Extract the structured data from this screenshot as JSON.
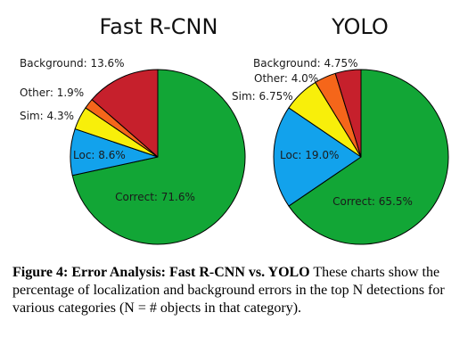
{
  "chart_data": [
    {
      "type": "pie",
      "title": "Fast R-CNN",
      "slices": [
        {
          "label": "Correct",
          "value": 71.6,
          "color": "#12a636",
          "text": "Correct: 71.6%"
        },
        {
          "label": "Loc",
          "value": 8.6,
          "color": "#12a2ec",
          "text": "Loc: 8.6%"
        },
        {
          "label": "Sim",
          "value": 4.3,
          "color": "#f8ef0a",
          "text": "Sim: 4.3%"
        },
        {
          "label": "Other",
          "value": 1.9,
          "color": "#f5661a",
          "text": "Other: 1.9%"
        },
        {
          "label": "Background",
          "value": 13.6,
          "color": "#c6202c",
          "text": "Background: 13.6%"
        }
      ]
    },
    {
      "type": "pie",
      "title": "YOLO",
      "slices": [
        {
          "label": "Correct",
          "value": 65.5,
          "color": "#12a636",
          "text": "Correct: 65.5%"
        },
        {
          "label": "Loc",
          "value": 19.0,
          "color": "#12a2ec",
          "text": "Loc: 19.0%"
        },
        {
          "label": "Sim",
          "value": 6.75,
          "color": "#f8ef0a",
          "text": "Sim: 6.75%"
        },
        {
          "label": "Other",
          "value": 4.0,
          "color": "#f5661a",
          "text": "Other: 4.0%"
        },
        {
          "label": "Background",
          "value": 4.75,
          "color": "#c6202c",
          "text": "Background: 4.75%"
        }
      ]
    }
  ],
  "caption": {
    "bold": "Figure 4: Error Analysis: Fast R-CNN vs. YOLO",
    "text": " These charts show the percentage of localization and background errors in the top N detections for various categories (N = # objects in that category)."
  }
}
